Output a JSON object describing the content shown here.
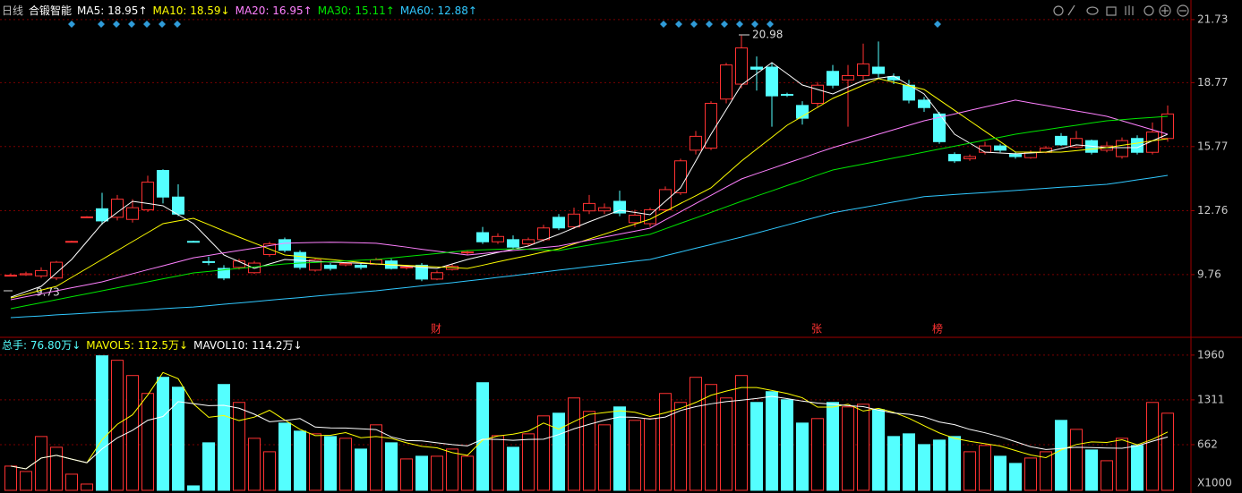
{
  "chart_data": [
    {
      "type": "candlestick",
      "period_label": "日线",
      "title": "合锻智能",
      "up_color": "#ff3232",
      "down_color": "#54ffff",
      "open": [
        9.73,
        9.75,
        9.7,
        9.6,
        11.3,
        12.45,
        12.85,
        12.45,
        12.35,
        12.8,
        14.65,
        13.4,
        11.32,
        10.37,
        10.05,
        10.1,
        9.85,
        10.7,
        11.4,
        10.8,
        9.97,
        10.2,
        10.22,
        10.2,
        10.25,
        10.4,
        10.08,
        10.2,
        9.55,
        10.0,
        10.78,
        11.73,
        11.3,
        11.4,
        11.2,
        11.4,
        12.45,
        12.0,
        12.75,
        12.75,
        13.2,
        12.2,
        12.15,
        12.8,
        13.6,
        15.6,
        15.7,
        18.0,
        18.7,
        19.5,
        19.5,
        18.22,
        17.7,
        17.8,
        19.3,
        18.9,
        19.1,
        19.5,
        19.05,
        18.65,
        17.95,
        17.3,
        15.4,
        15.2,
        15.5,
        15.8,
        15.4,
        15.25,
        15.5,
        16.25,
        15.75,
        16.05,
        15.6,
        15.3,
        16.15,
        15.5,
        16.15
      ],
      "high": [
        9.82,
        9.9,
        10.1,
        10.4,
        11.35,
        12.5,
        13.6,
        13.5,
        13.3,
        14.4,
        14.7,
        14.0,
        11.35,
        10.6,
        10.2,
        10.5,
        10.4,
        11.3,
        11.5,
        10.9,
        10.5,
        10.3,
        10.35,
        10.3,
        10.55,
        10.5,
        10.2,
        10.3,
        9.95,
        10.25,
        10.9,
        12.0,
        11.7,
        11.6,
        11.5,
        12.1,
        12.6,
        12.9,
        13.5,
        13.1,
        13.7,
        12.8,
        12.9,
        13.9,
        15.2,
        16.5,
        17.9,
        19.7,
        20.98,
        20.0,
        19.7,
        18.3,
        17.9,
        18.8,
        19.6,
        19.6,
        20.6,
        20.7,
        19.2,
        18.9,
        18.1,
        17.4,
        15.5,
        15.4,
        16.0,
        15.9,
        15.5,
        15.6,
        15.8,
        16.4,
        16.5,
        16.1,
        16.0,
        16.2,
        16.3,
        16.9,
        17.7
      ],
      "low": [
        9.73,
        9.7,
        9.6,
        9.5,
        11.28,
        12.42,
        12.1,
        12.3,
        12.2,
        12.7,
        13.1,
        12.5,
        11.28,
        10.2,
        9.5,
        10.0,
        9.8,
        10.6,
        10.8,
        10.0,
        9.9,
        9.95,
        10.15,
        10.0,
        10.2,
        10.0,
        10.0,
        9.45,
        9.5,
        9.95,
        10.7,
        11.2,
        11.2,
        10.95,
        11.1,
        11.3,
        11.85,
        11.9,
        12.6,
        12.6,
        12.5,
        12.0,
        12.0,
        12.7,
        13.5,
        15.4,
        15.6,
        17.8,
        18.5,
        18.4,
        16.7,
        18.1,
        16.8,
        17.6,
        18.5,
        16.7,
        18.9,
        19.0,
        18.7,
        17.8,
        17.4,
        15.9,
        15.0,
        15.1,
        15.4,
        15.5,
        15.2,
        15.2,
        15.45,
        15.8,
        15.7,
        15.4,
        15.5,
        15.2,
        15.4,
        15.4,
        16.0
      ],
      "close": [
        9.73,
        9.8,
        9.95,
        10.34,
        11.32,
        12.47,
        12.28,
        13.3,
        12.9,
        14.1,
        13.4,
        12.6,
        11.3,
        10.35,
        9.6,
        10.4,
        10.3,
        11.2,
        10.9,
        10.1,
        10.45,
        10.05,
        10.28,
        10.1,
        10.45,
        10.05,
        10.12,
        9.55,
        9.85,
        10.15,
        10.82,
        11.3,
        11.55,
        11.05,
        11.4,
        11.95,
        11.95,
        12.6,
        13.1,
        12.9,
        12.65,
        12.55,
        12.8,
        13.75,
        15.1,
        16.25,
        17.8,
        19.6,
        20.4,
        19.4,
        18.15,
        18.2,
        17.1,
        18.65,
        18.65,
        19.1,
        19.65,
        19.2,
        18.9,
        17.95,
        17.6,
        16.0,
        15.1,
        15.3,
        15.8,
        15.6,
        15.3,
        15.5,
        15.7,
        15.85,
        16.15,
        15.5,
        15.8,
        16.05,
        15.5,
        16.45,
        17.3
      ],
      "ma_series": [
        {
          "name": "MA5: 18.95↑",
          "color": "#ffffff",
          "values": [
            8.7,
            8.96,
            9.21,
            9.84,
            10.47,
            11.31,
            12.15,
            12.68,
            13.2,
            13.1,
            12.99,
            12.57,
            12.15,
            11.42,
            10.68,
            10.37,
            10.05,
            10.26,
            10.47,
            10.43,
            10.38,
            10.35,
            10.32,
            10.29,
            10.26,
            10.21,
            10.16,
            10.1,
            10.05,
            10.26,
            10.47,
            10.64,
            10.8,
            10.95,
            11.1,
            11.38,
            11.65,
            11.95,
            12.24,
            12.51,
            12.78,
            12.68,
            12.57,
            13.2,
            13.83,
            15.09,
            16.35,
            17.5,
            18.66,
            19.19,
            19.71,
            19.19,
            18.66,
            18.45,
            18.24,
            18.56,
            18.87,
            18.98,
            19.08,
            18.66,
            18.24,
            17.3,
            16.35,
            15.93,
            15.51,
            15.47,
            15.43,
            15.47,
            15.51,
            15.68,
            15.85,
            15.79,
            15.72,
            15.72,
            15.72,
            16.04,
            16.35
          ]
        },
        {
          "name": "MA10: 18.59↓",
          "color": "#ffff00",
          "values": [
            8.66,
            8.84,
            9.03,
            9.21,
            9.63,
            10.05,
            10.47,
            10.89,
            11.31,
            11.73,
            12.15,
            12.28,
            12.4,
            12.11,
            11.81,
            11.52,
            11.24,
            10.96,
            10.68,
            10.61,
            10.54,
            10.47,
            10.4,
            10.33,
            10.26,
            10.23,
            10.19,
            10.16,
            10.12,
            10.09,
            10.05,
            10.2,
            10.36,
            10.51,
            10.66,
            10.82,
            10.97,
            11.2,
            11.43,
            11.66,
            11.9,
            12.13,
            12.36,
            12.73,
            13.1,
            13.46,
            13.83,
            14.46,
            15.09,
            15.65,
            16.21,
            16.77,
            17.19,
            17.61,
            18.03,
            18.34,
            18.65,
            18.96,
            18.79,
            18.62,
            18.45,
            17.96,
            17.47,
            16.98,
            16.49,
            16.0,
            15.51,
            15.51,
            15.51,
            15.51,
            15.58,
            15.65,
            15.72,
            15.83,
            15.93,
            16.04,
            16.14
          ]
        },
        {
          "name": "MA20: 16.95↑",
          "color": "#ff80ff",
          "values": [
            8.58,
            8.72,
            8.86,
            9.0,
            9.14,
            9.28,
            9.42,
            9.61,
            9.8,
            9.99,
            10.17,
            10.36,
            10.55,
            10.66,
            10.78,
            10.89,
            11.0,
            11.12,
            11.23,
            11.25,
            11.27,
            11.28,
            11.27,
            11.25,
            11.23,
            11.14,
            11.05,
            10.95,
            10.86,
            10.77,
            10.68,
            10.75,
            10.82,
            10.89,
            10.96,
            11.03,
            11.1,
            11.24,
            11.38,
            11.52,
            11.66,
            11.8,
            11.94,
            12.33,
            12.71,
            13.1,
            13.48,
            13.87,
            14.25,
            14.5,
            14.74,
            14.99,
            15.23,
            15.48,
            15.72,
            15.93,
            16.14,
            16.35,
            16.56,
            16.77,
            16.98,
            17.14,
            17.3,
            17.47,
            17.63,
            17.79,
            17.95,
            17.82,
            17.7,
            17.57,
            17.44,
            17.32,
            17.19,
            16.98,
            16.77,
            16.56,
            16.35
          ]
        },
        {
          "name": "MA30: 15.11↑",
          "color": "#00e600",
          "values": [
            8.16,
            8.3,
            8.44,
            8.58,
            8.72,
            8.86,
            9.0,
            9.14,
            9.28,
            9.42,
            9.56,
            9.7,
            9.84,
            9.91,
            9.98,
            10.05,
            10.12,
            10.19,
            10.26,
            10.3,
            10.33,
            10.37,
            10.4,
            10.44,
            10.47,
            10.54,
            10.61,
            10.68,
            10.75,
            10.82,
            10.89,
            10.92,
            10.95,
            10.97,
            10.95,
            10.92,
            10.89,
            11.02,
            11.14,
            11.27,
            11.4,
            11.52,
            11.65,
            11.91,
            12.17,
            12.42,
            12.68,
            12.94,
            13.2,
            13.45,
            13.69,
            13.94,
            14.18,
            14.43,
            14.67,
            14.81,
            14.95,
            15.09,
            15.23,
            15.37,
            15.51,
            15.65,
            15.79,
            15.93,
            16.07,
            16.21,
            16.35,
            16.46,
            16.56,
            16.67,
            16.77,
            16.88,
            16.98,
            17.03,
            17.09,
            17.14,
            17.19
          ]
        },
        {
          "name": "MA60: 12.88↑",
          "color": "#30c8ff",
          "values": [
            7.74,
            7.78,
            7.82,
            7.87,
            7.91,
            7.95,
            7.99,
            8.03,
            8.07,
            8.11,
            8.16,
            8.2,
            8.24,
            8.3,
            8.37,
            8.43,
            8.49,
            8.56,
            8.62,
            8.68,
            8.75,
            8.81,
            8.87,
            8.94,
            9.0,
            9.08,
            9.15,
            9.23,
            9.31,
            9.38,
            9.46,
            9.54,
            9.63,
            9.71,
            9.8,
            9.88,
            9.97,
            10.05,
            10.14,
            10.22,
            10.3,
            10.39,
            10.47,
            10.65,
            10.82,
            11.0,
            11.17,
            11.35,
            11.52,
            11.71,
            11.9,
            12.09,
            12.28,
            12.47,
            12.66,
            12.79,
            12.91,
            13.04,
            13.17,
            13.29,
            13.42,
            13.47,
            13.52,
            13.57,
            13.61,
            13.66,
            13.71,
            13.76,
            13.81,
            13.86,
            13.9,
            13.95,
            14.0,
            14.1,
            14.21,
            14.31,
            14.42
          ]
        }
      ],
      "annotations": [
        {
          "text": "20.98"
        },
        {
          "text": "9.73"
        },
        {
          "text": "财"
        },
        {
          "text": "张"
        },
        {
          "text": "榜"
        }
      ],
      "ylim": [
        6.9,
        22.65
      ],
      "yticks": [
        9.76,
        12.76,
        15.77,
        18.77,
        21.73
      ],
      "grid": true
    },
    {
      "type": "bar",
      "unit_label": "X1000",
      "series": [
        {
          "name": "总手: 76.80万↓",
          "type": "bar",
          "color": "#54ffff",
          "values": [
            351,
            273,
            780,
            624,
            234,
            91,
            1950,
            1885,
            1664,
            1404,
            1638,
            1495,
            65,
            689,
            1534,
            1274,
            754,
            559,
            975,
            858,
            819,
            780,
            754,
            598,
            949,
            689,
            455,
            494,
            494,
            598,
            494,
            1560,
            793,
            624,
            819,
            1079,
            1118,
            1339,
            1144,
            949,
            1209,
            1014,
            1040,
            1404,
            1274,
            1638,
            1534,
            1339,
            1664,
            1274,
            1430,
            1313,
            975,
            1040,
            1274,
            1209,
            1248,
            1170,
            780,
            819,
            663,
            728,
            780,
            559,
            650,
            494,
            390,
            468,
            559,
            1014,
            884,
            585,
            429,
            754,
            650,
            1274,
            1118
          ]
        },
        {
          "name": "MAVOL5: 112.5万↓",
          "type": "line",
          "color": "#ffff00",
          "values": [
            351,
            312,
            468,
            507,
            452,
            400,
            734,
            957,
            1095,
            1381,
            1708,
            1617,
            1253,
            1059,
            1084,
            1011,
            1061,
            1161,
            1019,
            884,
            793,
            798,
            837,
            762,
            780,
            754,
            689,
            637,
            616,
            546,
            507,
            728,
            788,
            814,
            858,
            975,
            887,
            996,
            1100,
            1126,
            1152,
            1131,
            1071,
            1123,
            1188,
            1274,
            1378,
            1438,
            1490,
            1490,
            1448,
            1404,
            1342,
            1206,
            1206,
            1248,
            1149,
            1188,
            1131,
            1045,
            936,
            832,
            754,
            710,
            676,
            642,
            577,
            512,
            474,
            585,
            664,
            702,
            694,
            733,
            660,
            738,
            845
          ]
        },
        {
          "name": "MAVOL10: 114.2万↓",
          "type": "line",
          "color": "#ffffff",
          "values": [
            351,
            312,
            468,
            507,
            452,
            400,
            600,
            760,
            870,
            1015,
            1070,
            1286,
            1256,
            1227,
            1232,
            1190,
            1104,
            994,
            1012,
            1040,
            917,
            905,
            903,
            891,
            881,
            774,
            721,
            717,
            689,
            663,
            644,
            741,
            738,
            725,
            737,
            741,
            808,
            892,
            957,
            1017,
            1063,
            1059,
            1033,
            1062,
            1157,
            1213,
            1254,
            1285,
            1307,
            1331,
            1361,
            1329,
            1293,
            1264,
            1248,
            1227,
            1212,
            1162,
            1121,
            1103,
            1064,
            991,
            952,
            883,
            834,
            776,
            705,
            632,
            592,
            606,
            624,
            620,
            613,
            610,
            643,
            712,
            773
          ]
        }
      ],
      "ylim": [
        0,
        2140
      ],
      "yticks": [
        662,
        1311,
        1960
      ],
      "grid": true
    }
  ]
}
